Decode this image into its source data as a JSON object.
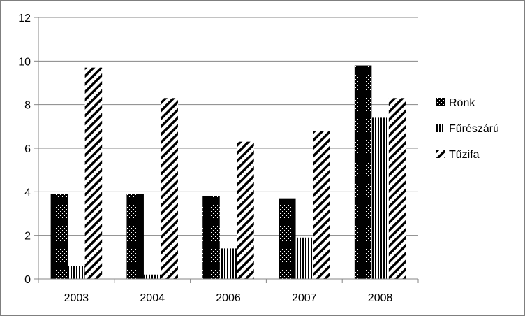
{
  "chart_data": {
    "type": "bar",
    "title": "",
    "xlabel": "",
    "ylabel": "",
    "categories": [
      "2003",
      "2004",
      "2006",
      "2007",
      "2008"
    ],
    "series": [
      {
        "name": "Rönk",
        "values": [
          3.9,
          3.9,
          3.8,
          3.7,
          9.8
        ],
        "pattern": "dots"
      },
      {
        "name": "Fűrészárú",
        "values": [
          0.6,
          0.2,
          1.4,
          1.9,
          7.4
        ],
        "pattern": "vertical"
      },
      {
        "name": "Tűzifa",
        "values": [
          9.7,
          8.3,
          6.3,
          6.8,
          8.3
        ],
        "pattern": "diagonal"
      }
    ],
    "ylim": [
      0,
      12
    ],
    "yticks": [
      0,
      2,
      4,
      6,
      8,
      10,
      12
    ],
    "grid": true,
    "legend": "right",
    "colors": {
      "bar_fill": "#000000",
      "pattern_bg": "#ffffff",
      "grid": "#868686",
      "axis": "#868686",
      "border": "#7f7f7f"
    }
  }
}
